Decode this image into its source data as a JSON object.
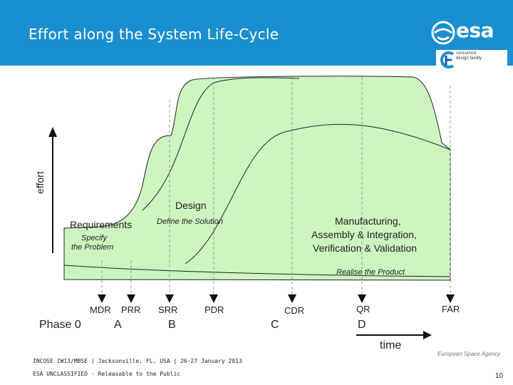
{
  "header": {
    "title": "Effort along the System Life-Cycle"
  },
  "logos": {
    "esa": "esa",
    "cdf_line1": "concurrent",
    "cdf_line2": "design facility",
    "agency": "European Space Agency"
  },
  "axes": {
    "y_label": "effort",
    "x_label": "time"
  },
  "regions": {
    "design": "Design",
    "requirements": "Requirements",
    "define_solution": "Define the Solution",
    "specify_problem_1": "Specify",
    "specify_problem_2": "the Problem",
    "manufacturing_1": "Manufacturing,",
    "manufacturing_2": "Assembly & Integration,",
    "manufacturing_3": "Verification & Validation",
    "realise": "Realise the Product"
  },
  "milestones": [
    "MDR",
    "PRR",
    "SRR",
    "PDR",
    "CDR",
    "QR",
    "FAR"
  ],
  "phases": [
    "Phase 0",
    "A",
    "B",
    "C",
    "D"
  ],
  "footer": {
    "line1": "INCOSE IW13/MBSE | Jacksonville, FL, USA | 26-27 January 2013",
    "line2": "ESA UNCLASSIFIED - Releasable to the Public",
    "page": "10"
  },
  "colors": {
    "header": "#1a8fd0",
    "fill": "#ccf5c0",
    "dashed": "#999999",
    "marker": "#111111"
  }
}
